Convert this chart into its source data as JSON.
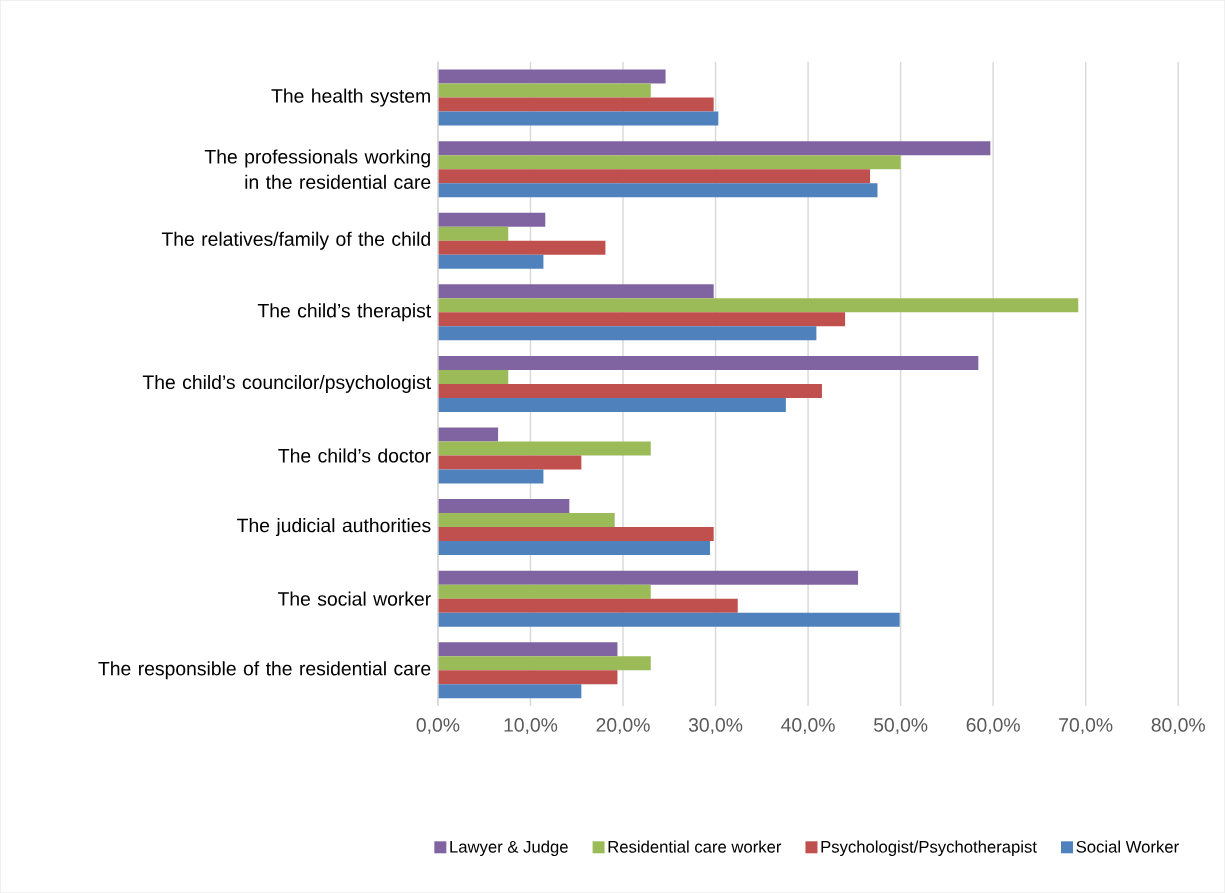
{
  "chart_data": {
    "type": "bar",
    "orientation": "horizontal",
    "categories": [
      "The health system",
      "The professionals working in the residential care",
      "The relatives/family of the child",
      "The child’s therapist",
      "The child’s councilor/psychologist",
      "The child’s doctor",
      "The judicial authorities",
      "The social worker",
      "The  responsible of the residential care"
    ],
    "series": [
      {
        "name": "Lawyer & Judge",
        "color": "#8064a2",
        "values": [
          24.6,
          59.7,
          11.6,
          29.8,
          58.4,
          6.5,
          14.2,
          45.4,
          19.4
        ]
      },
      {
        "name": "Residential care worker",
        "color": "#9bbb59",
        "values": [
          23.0,
          50.0,
          7.6,
          69.2,
          7.6,
          23.0,
          19.1,
          23.0,
          23.0
        ]
      },
      {
        "name": "Psychologist/Psychotherapist",
        "color": "#c0504d",
        "values": [
          29.8,
          46.7,
          18.1,
          44.0,
          41.5,
          15.5,
          29.8,
          32.4,
          19.4
        ]
      },
      {
        "name": "Social Worker",
        "color": "#4f81bd",
        "values": [
          30.3,
          47.5,
          11.4,
          40.9,
          37.6,
          11.4,
          29.4,
          49.9,
          15.5
        ]
      }
    ],
    "xlim": [
      0,
      80
    ],
    "xticks": [
      {
        "value": 0,
        "label": "0,0%"
      },
      {
        "value": 10,
        "label": "10,0%"
      },
      {
        "value": 20,
        "label": "20,0%"
      },
      {
        "value": 30,
        "label": "30,0%"
      },
      {
        "value": 40,
        "label": "40,0%"
      },
      {
        "value": 50,
        "label": "50,0%"
      },
      {
        "value": 60,
        "label": "60,0%"
      },
      {
        "value": 70,
        "label": "70,0%"
      },
      {
        "value": 80,
        "label": "80,0%"
      }
    ],
    "grid": "x",
    "legend": "bottom"
  }
}
